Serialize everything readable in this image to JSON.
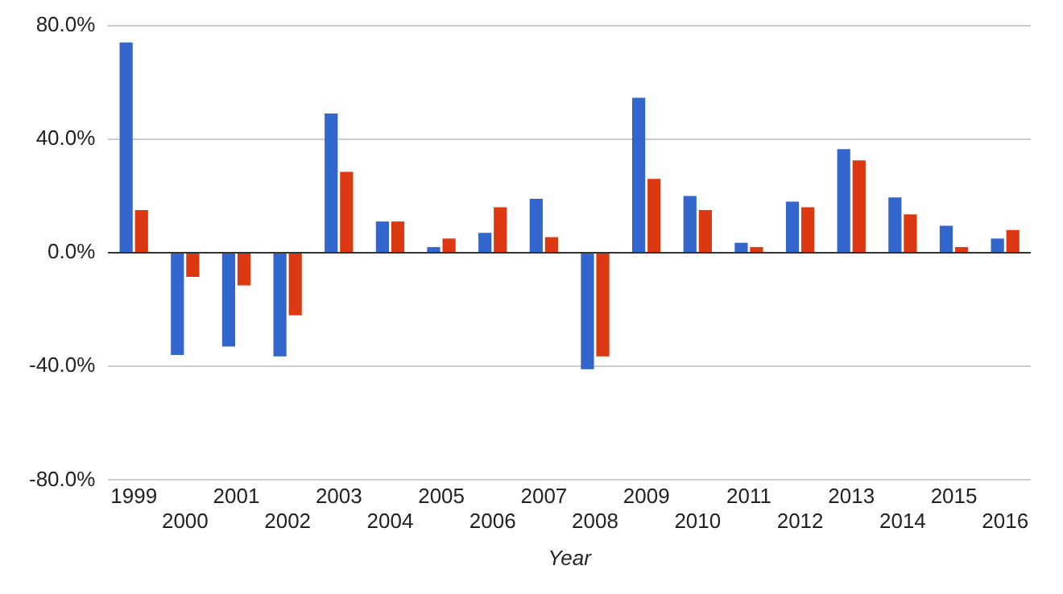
{
  "chart_data": {
    "type": "bar",
    "xlabel": "Year",
    "categories": [
      "1999",
      "2000",
      "2001",
      "2002",
      "2003",
      "2004",
      "2005",
      "2006",
      "2007",
      "2008",
      "2009",
      "2010",
      "2011",
      "2012",
      "2013",
      "2014",
      "2015",
      "2016"
    ],
    "series": [
      {
        "color": "#3366cc",
        "values": [
          74,
          -36,
          -33,
          -36.5,
          49,
          11,
          2,
          7,
          19,
          -41,
          54.5,
          20,
          3.5,
          18,
          36.5,
          19.5,
          9.5,
          5
        ]
      },
      {
        "color": "#dc3912",
        "values": [
          15,
          -8.5,
          -11.5,
          -22,
          28.5,
          11,
          5,
          16,
          5.5,
          -36.5,
          26,
          15,
          2,
          16,
          32.5,
          13.5,
          2,
          8
        ]
      }
    ],
    "ylim": [
      -80,
      80
    ],
    "yticks": [
      {
        "value": -80,
        "label": "-80.0%"
      },
      {
        "value": -40,
        "label": "-40.0%"
      },
      {
        "value": 0,
        "label": "0.0%"
      },
      {
        "value": 40,
        "label": "40.0%"
      },
      {
        "value": 80,
        "label": "80.0%"
      }
    ],
    "grid": "y",
    "legend": false
  }
}
